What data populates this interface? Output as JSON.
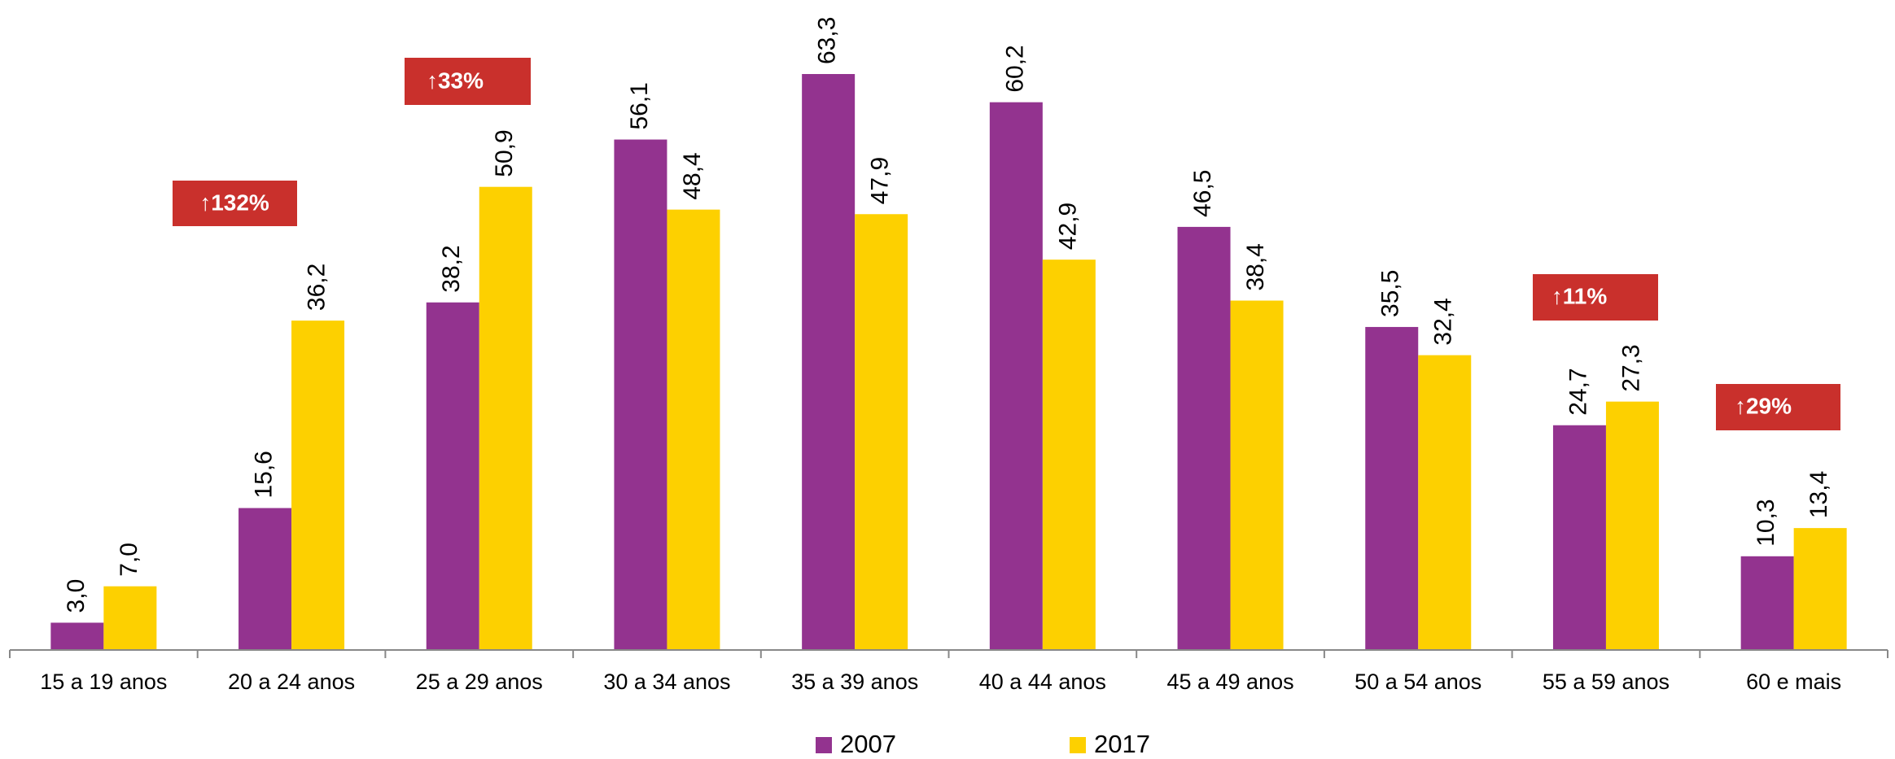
{
  "chart_data": {
    "type": "bar",
    "categories": [
      "15 a 19 anos",
      "20 a 24 anos",
      "25 a 29 anos",
      "30 a 34 anos",
      "35 a 39 anos",
      "40 a 44 anos",
      "45 a 49 anos",
      "50 a 54 anos",
      "55 a 59 anos",
      "60 e mais"
    ],
    "series": [
      {
        "name": "2007",
        "color": "#93338f",
        "values": [
          3.0,
          15.6,
          38.2,
          56.1,
          63.3,
          60.2,
          46.5,
          35.5,
          24.7,
          10.3
        ],
        "value_labels": [
          "3,0",
          "15,6",
          "38,2",
          "56,1",
          "63,3",
          "60,2",
          "46,5",
          "35,5",
          "24,7",
          "10,3"
        ]
      },
      {
        "name": "2017",
        "color": "#fdd000",
        "values": [
          7.0,
          36.2,
          50.9,
          48.4,
          47.9,
          42.9,
          38.4,
          32.4,
          27.3,
          13.4
        ],
        "value_labels": [
          "7,0",
          "36,2",
          "50,9",
          "48,4",
          "47,9",
          "42,9",
          "38,4",
          "32,4",
          "27,3",
          "13,4"
        ]
      }
    ],
    "annotations": [
      "↑132%",
      "↑33%",
      "↑11%",
      "↑29%"
    ],
    "annotation_color": "#c9302c"
  }
}
